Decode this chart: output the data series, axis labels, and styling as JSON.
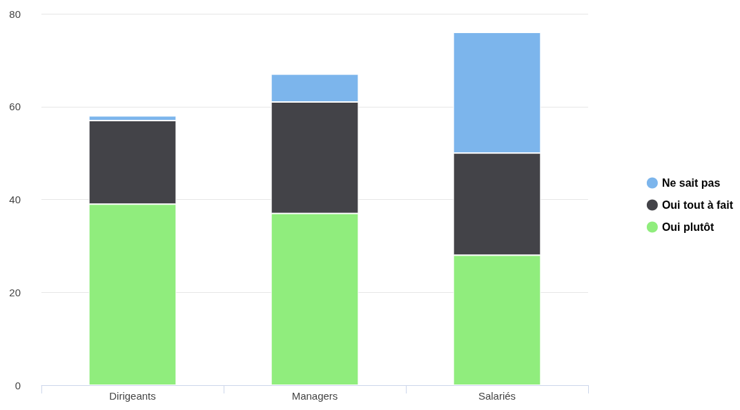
{
  "chart_data": {
    "type": "bar",
    "stacked": true,
    "categories": [
      "Dirigeants",
      "Managers",
      "Salariés"
    ],
    "series": [
      {
        "name": "Oui plutôt",
        "color": "#90ed7d",
        "values": [
          39,
          37,
          28
        ]
      },
      {
        "name": "Oui tout à fait",
        "color": "#434348",
        "values": [
          18,
          24,
          22
        ]
      },
      {
        "name": "Ne sait pas",
        "color": "#7cb5ec",
        "values": [
          1,
          6,
          26
        ]
      }
    ],
    "ylim": [
      0,
      80
    ],
    "yticks": [
      0,
      20,
      40,
      60,
      80
    ],
    "grid": "y",
    "legend": "right"
  }
}
